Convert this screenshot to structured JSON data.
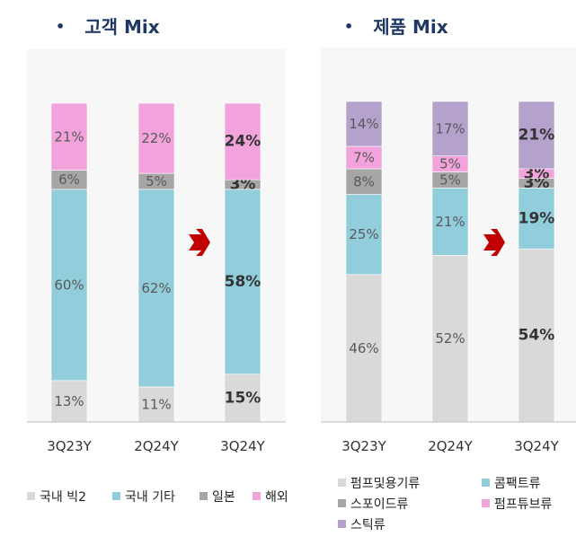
{
  "charts": {
    "customer": {
      "bullet": "•",
      "title": "고객 Mix"
    },
    "product": {
      "bullet": "•",
      "title": "제품 Mix"
    }
  },
  "chart_data": [
    {
      "type": "bar",
      "stacked": true,
      "title": "고객 Mix",
      "categories": [
        "3Q23Y",
        "2Q24Y",
        "3Q24Y"
      ],
      "ylim": [
        0,
        100
      ],
      "highlight_category": "3Q24Y",
      "series": [
        {
          "name": "국내 빅2",
          "color": "#d9d9d9",
          "values": [
            13,
            11,
            15
          ]
        },
        {
          "name": "국내 기타",
          "color": "#92cddc",
          "values": [
            60,
            62,
            58
          ]
        },
        {
          "name": "일본",
          "color": "#a6a6a6",
          "values": [
            6,
            5,
            3
          ]
        },
        {
          "name": "해외",
          "color": "#f2a3dc",
          "values": [
            21,
            22,
            24
          ]
        }
      ],
      "legend": "bottom"
    },
    {
      "type": "bar",
      "stacked": true,
      "title": "제품 Mix",
      "categories": [
        "3Q23Y",
        "2Q24Y",
        "3Q24Y"
      ],
      "ylim": [
        0,
        100
      ],
      "highlight_category": "3Q24Y",
      "series": [
        {
          "name": "펌프및용기류",
          "color": "#d9d9d9",
          "values": [
            46,
            52,
            54
          ]
        },
        {
          "name": "콤팩트류",
          "color": "#92cddc",
          "values": [
            25,
            21,
            19
          ]
        },
        {
          "name": "스포이드류",
          "color": "#a6a6a6",
          "values": [
            8,
            5,
            3
          ]
        },
        {
          "name": "펌프튜브류",
          "color": "#f2a3dc",
          "values": [
            7,
            5,
            3
          ]
        },
        {
          "name": "스틱류",
          "color": "#b4a1cc",
          "values": [
            14,
            17,
            21
          ]
        }
      ],
      "legend": "bottom"
    }
  ]
}
